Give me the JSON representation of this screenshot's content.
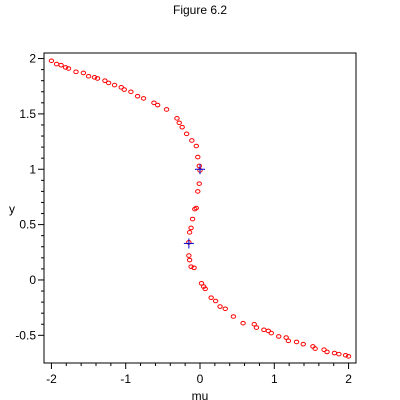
{
  "chart_data": {
    "type": "scatter",
    "title": "Figure 6.2",
    "xlabel": "mu",
    "ylabel": "y",
    "xlim": [
      -2.1,
      2.1
    ],
    "ylim": [
      -0.75,
      2.05
    ],
    "xticks": [
      -2,
      -1,
      0,
      1,
      2
    ],
    "xtick_labels": [
      "-2",
      "-1",
      "0",
      "1",
      "2"
    ],
    "yticks": [
      -0.5,
      0,
      0.5,
      1,
      1.5,
      2
    ],
    "ytick_labels": [
      "-0.5",
      "0",
      "0.5",
      "1",
      "1.5",
      "2"
    ],
    "grid": false,
    "series": [
      {
        "marker": "circle",
        "color": "#ff0000",
        "x": [
          -2.0,
          -1.93,
          -1.87,
          -1.81,
          -1.77,
          -1.67,
          -1.57,
          -1.5,
          -1.42,
          -1.38,
          -1.28,
          -1.23,
          -1.15,
          -1.06,
          -1.02,
          -0.93,
          -0.84,
          -0.76,
          -0.62,
          -0.57,
          -0.45,
          -0.31,
          -0.28,
          -0.24,
          -0.18,
          -0.11,
          -0.05,
          -0.03,
          -0.01,
          0.0,
          -0.01,
          -0.03,
          -0.05,
          -0.07,
          -0.1,
          -0.12,
          -0.14,
          -0.15,
          -0.15,
          -0.14,
          -0.12,
          -0.08,
          0.02,
          0.05,
          0.07,
          0.15,
          0.21,
          0.27,
          0.34,
          0.45,
          0.58,
          0.73,
          0.76,
          0.86,
          0.92,
          0.96,
          1.06,
          1.16,
          1.19,
          1.3,
          1.39,
          1.52,
          1.55,
          1.67,
          1.71,
          1.81,
          1.87,
          1.96,
          2.0
        ],
        "y": [
          1.98,
          1.95,
          1.94,
          1.92,
          1.91,
          1.88,
          1.87,
          1.84,
          1.83,
          1.82,
          1.8,
          1.78,
          1.76,
          1.74,
          1.72,
          1.7,
          1.66,
          1.64,
          1.6,
          1.58,
          1.54,
          1.46,
          1.42,
          1.38,
          1.32,
          1.26,
          1.21,
          1.11,
          1.03,
          0.99,
          0.87,
          0.8,
          0.65,
          0.64,
          0.55,
          0.47,
          0.43,
          0.34,
          0.22,
          0.18,
          0.12,
          0.11,
          -0.03,
          -0.06,
          -0.08,
          -0.16,
          -0.19,
          -0.24,
          -0.26,
          -0.33,
          -0.39,
          -0.4,
          -0.43,
          -0.45,
          -0.46,
          -0.48,
          -0.51,
          -0.52,
          -0.55,
          -0.56,
          -0.58,
          -0.6,
          -0.62,
          -0.63,
          -0.65,
          -0.66,
          -0.67,
          -0.68,
          -0.69
        ]
      },
      {
        "marker": "plus",
        "color": "#0000cc",
        "x": [
          0.0,
          -0.15
        ],
        "y": [
          1.0,
          0.33
        ]
      }
    ]
  }
}
